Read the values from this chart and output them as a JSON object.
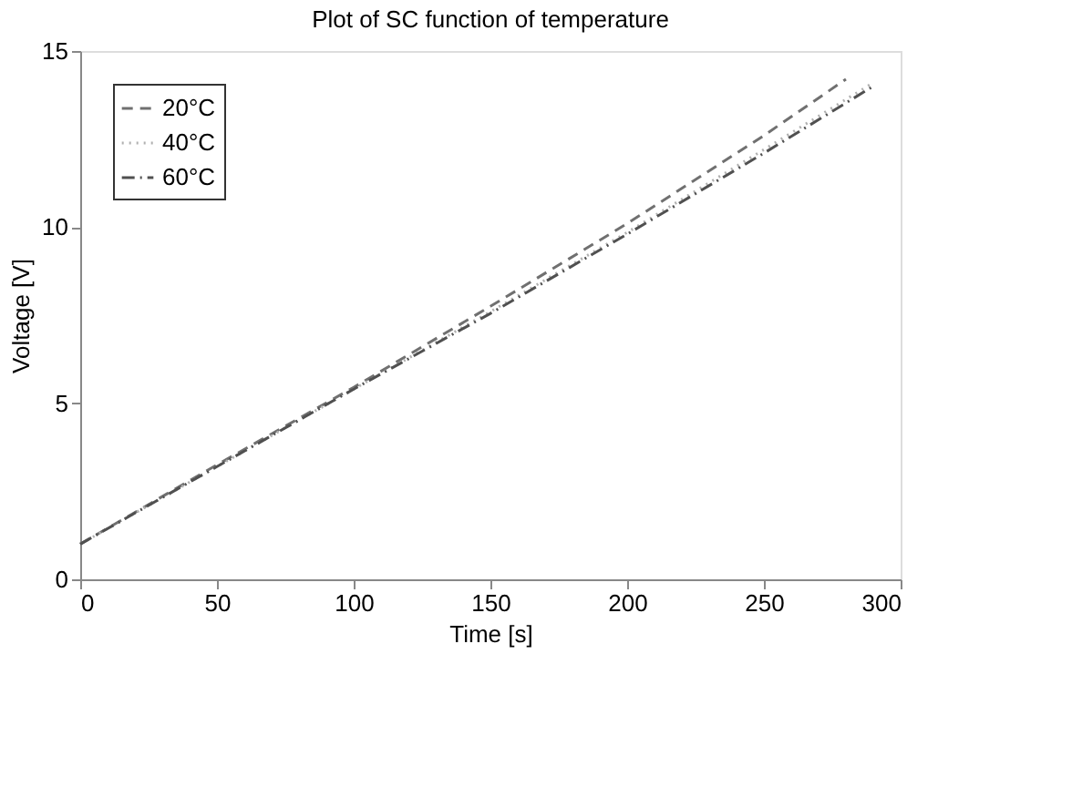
{
  "chart_data": {
    "type": "line",
    "title": "Plot of SC function of  temperature",
    "xlabel": "Time [s]",
    "ylabel": "Voltage [V]",
    "xlim": [
      0,
      300
    ],
    "xticks": [
      0,
      50,
      100,
      150,
      200,
      250,
      300
    ],
    "ylim": [
      0,
      15
    ],
    "yticks": [
      0,
      5,
      10,
      15
    ],
    "grid": false,
    "legend": "top left",
    "marker": "none",
    "series": [
      {
        "name": "20°C",
        "color": "#707070",
        "line_style": "dashed",
        "x": [
          0,
          50,
          100,
          150,
          200,
          250,
          280
        ],
        "values": [
          1,
          3.25,
          5.45,
          7.75,
          10.1,
          12.6,
          14.2
        ]
      },
      {
        "name": "40°C",
        "color": "#b0b0b0",
        "line_style": "dotted",
        "x": [
          0,
          50,
          100,
          150,
          200,
          250,
          290
        ],
        "values": [
          1,
          3.2,
          5.4,
          7.6,
          9.85,
          12.2,
          14.1
        ]
      },
      {
        "name": "60°C",
        "color": "#505050",
        "line_style": "dashdot",
        "x": [
          0,
          50,
          100,
          150,
          200,
          250,
          290
        ],
        "values": [
          1,
          3.2,
          5.4,
          7.55,
          9.8,
          12.1,
          14.0
        ]
      }
    ]
  }
}
